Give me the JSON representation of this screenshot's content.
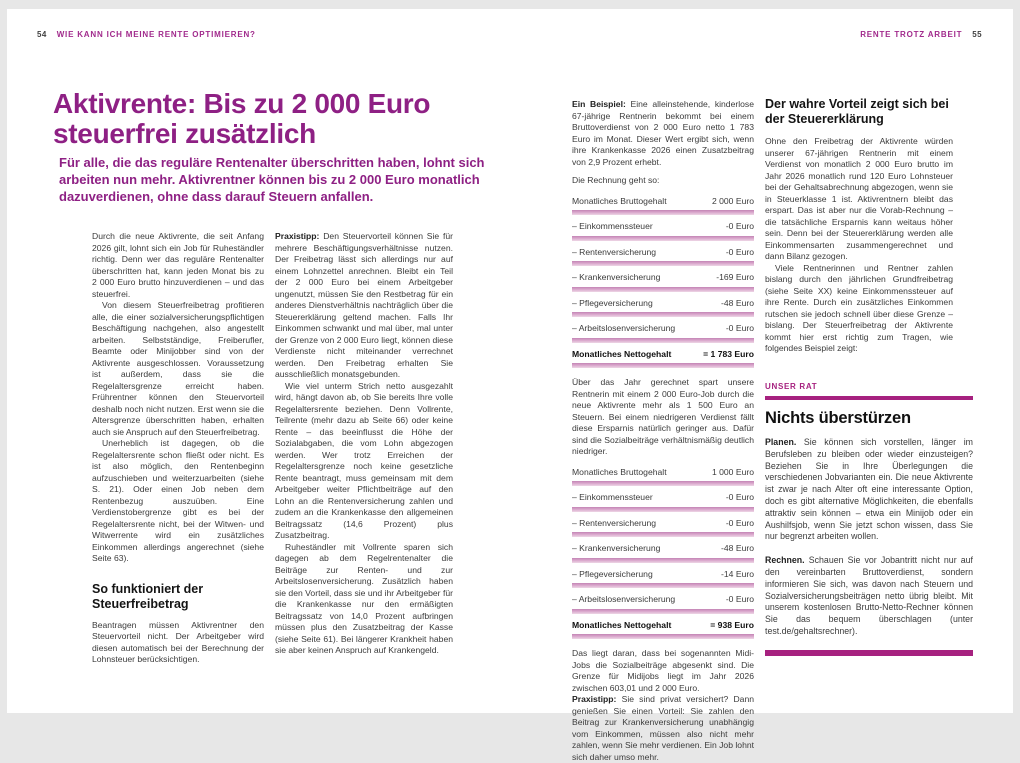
{
  "colors": {
    "brand_magenta": "#8e2084",
    "rule_magenta": "#a6217f",
    "table_bar_pink": "#d9a6cb",
    "body_text": "#3b3b3b"
  },
  "header_left": {
    "page_number": "54",
    "title": "WIE KANN ICH MEINE RENTE OPTIMIEREN?"
  },
  "header_right": {
    "title": "RENTE TROTZ ARBEIT",
    "page_number": "55"
  },
  "article": {
    "title": "Aktivrente: Bis zu 2 000 Euro steuerfrei zusätzlich",
    "standfirst": "Für alle, die das reguläre Rentenalter überschritten haben, lohnt sich arbeiten nun mehr. Aktivrentner können bis zu 2 000 Euro monatlich dazuverdienen, ohne dass darauf Steuern anfallen."
  },
  "col1": {
    "p1": "Durch die neue Aktivrente, die seit Anfang 2026 gilt, lohnt sich ein Job für Ruheständler richtig. Denn wer das reguläre Rentenalter überschritten hat, kann jeden Monat bis zu 2 000 Euro brutto hinzuverdienen – und das steuerfrei.",
    "p2": "Von diesem Steuerfreibetrag profitieren alle, die einer sozialversicherungspflichtigen Beschäftigung nachgehen, also angestellt arbeiten. Selbstständige, Freiberufler, Beamte oder Minijobber sind von der Aktivrente ausgeschlossen. Voraussetzung ist außerdem, dass sie die Regelaltersgrenze erreicht haben. Frührentner können den Steuervorteil deshalb noch nicht nutzen. Erst wenn sie die Altersgrenze überschritten haben, erhalten auch sie Anspruch auf den Steuerfreibetrag.",
    "p3": "Unerheblich ist dagegen, ob die Regelaltersrente schon fließt oder nicht. Es ist also möglich, den Rentenbeginn aufzuschieben und weiterzuarbeiten (siehe S. 21). Oder einen Job neben dem Rentenbezug auszuüben. Eine Verdienstobergrenze gibt es bei der Regelaltersrente nicht, bei der Witwen- und Witwerrente wird ein zusätzliches Einkommen allerdings angerechnet (siehe Seite 63).",
    "heading": "So funktioniert der Steuerfreibetrag",
    "p4": "Beantragen müssen Aktivrentner den Steuervorteil nicht. Der Arbeitgeber wird diesen automatisch bei der Berechnung der Lohnsteuer berücksichtigen."
  },
  "col2": {
    "p1_lead": "Praxistipp:",
    "p1": "Den Steuervorteil können Sie für mehrere Beschäftigungsverhältnisse nutzen. Der Freibetrag lässt sich allerdings nur auf einem Lohnzettel anrechnen. Bleibt ein Teil der 2 000 Euro bei einem Arbeitgeber ungenutzt, müssen Sie den Restbetrag für ein anderes Dienstverhältnis nachträglich über die Steuererklärung geltend machen. Falls Ihr Einkommen schwankt und mal über, mal unter der Grenze von 2 000 Euro liegt, können diese Verdienste nicht miteinander verrechnet werden. Den Freibetrag erhalten Sie ausschließlich monatsgebunden.",
    "p2": "Wie viel unterm Strich netto ausgezahlt wird, hängt davon ab, ob Sie bereits Ihre volle Regelaltersrente beziehen. Denn Vollrente, Teilrente (mehr dazu ab Seite 66) oder keine Rente – das beeinflusst die Höhe der Sozialabgaben, die vom Lohn abgezogen werden. Wer trotz Erreichen der Regelaltersgrenze noch keine gesetzliche Rente beantragt, muss gemeinsam mit dem Arbeitgeber weiter Pflichtbeiträge auf den Lohn an die Rentenversicherung zahlen und zudem an die Krankenkasse den allgemeinen Beitragssatz (14,6 Prozent) plus Zusatzbeitrag.",
    "p3": "Ruheständler mit Vollrente sparen sich dagegen ab dem Regelrentenalter die Beiträge zur Renten- und zur Arbeitslosenversicherung. Zusätzlich haben sie den Vorteil, dass sie und ihr Arbeitgeber für die Krankenkasse nur den ermäßigten Beitragssatz von 14,0 Prozent aufbringen müssen plus den Zusatzbeitrag der Kasse (siehe Seite 61). Bei längerer Krankheit haben sie aber keinen Anspruch auf Krankengeld."
  },
  "col3": {
    "p1_lead": "Ein Beispiel:",
    "p1": "Eine alleinstehende, kinderlose 67-jährige Rentnerin bekommt bei einem Bruttoverdienst von 2 000 Euro netto 1 783 Euro im Monat. Dieser Wert ergibt sich, wenn ihre Krankenkasse 2026 einen Zusatzbeitrag von 2,9 Prozent erhebt.",
    "calc_intro": "Die Rechnung geht so:",
    "table1": {
      "rows": [
        {
          "label": "Monatliches Bruttogehalt",
          "value": "2 000 Euro"
        },
        {
          "label": "– Einkommenssteuer",
          "value": "-0 Euro"
        },
        {
          "label": "– Rentenversicherung",
          "value": "-0 Euro"
        },
        {
          "label": "– Krankenversicherung",
          "value": "-169 Euro"
        },
        {
          "label": "– Pflegeversicherung",
          "value": "-48 Euro"
        },
        {
          "label": "– Arbeitslosenversicherung",
          "value": "-0 Euro"
        },
        {
          "label": "Monatliches Nettogehalt",
          "value": "= 1 783 Euro"
        }
      ]
    },
    "p2": "Über das Jahr gerechnet spart unsere Rentnerin mit einem 2 000 Euro-Job durch die neue Aktivrente mehr als 1 500 Euro an Steuern. Bei einem niedrigeren Verdienst fällt diese Ersparnis natürlich geringer aus. Dafür sind die Sozialbeiträge verhältnismäßig deutlich niedriger.",
    "table2": {
      "rows": [
        {
          "label": "Monatliches Bruttogehalt",
          "value": "1 000 Euro"
        },
        {
          "label": "– Einkommenssteuer",
          "value": "-0 Euro"
        },
        {
          "label": "– Rentenversicherung",
          "value": "-0 Euro"
        },
        {
          "label": "– Krankenversicherung",
          "value": "-48 Euro"
        },
        {
          "label": "– Pflegeversicherung",
          "value": "-14 Euro"
        },
        {
          "label": "– Arbeitslosenversicherung",
          "value": "-0 Euro"
        },
        {
          "label": "Monatliches Nettogehalt",
          "value": "= 938 Euro"
        }
      ]
    },
    "p3": "Das liegt daran, dass bei sogenannten Midi-Jobs die Sozialbeiträge abgesenkt sind. Die Grenze für Midijobs liegt im Jahr 2026 zwischen 603,01 und 2 000 Euro.",
    "p4_lead": "Praxistipp:",
    "p4": "Sie sind privat versichert? Dann genießen Sie einen Vorteil: Sie zahlen den Beitrag zur Krankenversicherung unabhängig vom Einkommen, müssen also nicht mehr zahlen, wenn Sie mehr verdienen. Ein Job lohnt sich daher umso mehr."
  },
  "col4": {
    "heading": "Der wahre Vorteil zeigt sich bei der Steuererklärung",
    "p1": "Ohne den Freibetrag der Aktivrente würden unserer 67-jährigen Rentnerin mit einem Verdienst von monatlich 2 000 Euro brutto im Jahr 2026 monatlich rund 120 Euro Lohnsteuer bei der Gehaltsabrechnung abgezogen, wenn sie in Steuerklasse 1 ist. Aktivrentnern bleibt das erspart. Das ist aber nur die Vorab-Rechnung – die tatsächliche Ersparnis kann weitaus höher sein. Denn bei der Steuererklärung werden alle Einkommensarten zusammengerechnet und dann Bilanz gezogen.",
    "p2": "Viele Rentnerinnen und Rentner zahlen bislang durch den jährlichen Grundfreibetrag (siehe Seite XX) keine Einkommenssteuer auf ihre Rente. Durch ein zusätzliches Einkommen rutschen sie jedoch schnell über diese Grenze – bislang. Der Steuerfreibetrag der Aktivrente kommt hier erst richtig zum Tragen, wie folgendes Beispiel zeigt:",
    "advice_box": {
      "kicker": "UNSER RAT",
      "heading": "Nichts überstürzen",
      "p1_lead": "Planen.",
      "p1": "Sie können sich vorstellen, länger im Berufsleben zu bleiben oder wieder einzusteigen? Beziehen Sie in Ihre Überlegungen die verschiedenen Jobvarianten ein. Die neue Aktivrente ist zwar je nach Alter oft eine interessante Option, doch es gibt alternative Möglichkeiten, die ebenfalls attraktiv sein können – etwa ein Minijob oder ein Aushilfsjob, wenn Sie jetzt schon wissen, dass Sie nur begrenzt arbeiten wollen.",
      "p2_lead": "Rechnen.",
      "p2": "Schauen Sie vor Jobantritt nicht nur auf den vereinbarten Bruttoverdienst, sondern informieren Sie sich, was davon nach Steuern und Sozialversicherungsbeiträgen netto übrig bleibt. Mit unserem kostenlosen Brutto-Netto-Rechner können Sie das bequem überschlagen (unter test.de/gehaltsrechner)."
    }
  }
}
